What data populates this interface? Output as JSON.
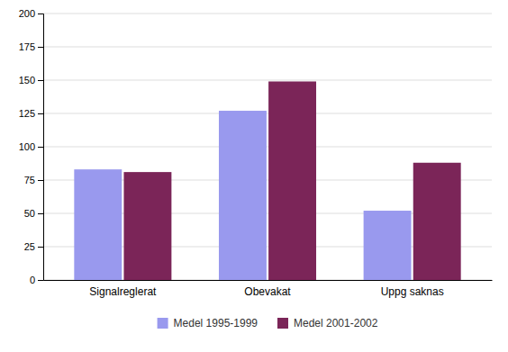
{
  "chart_data": {
    "type": "bar",
    "categories": [
      "Signalreglerat",
      "Obevakat",
      "Uppg saknas"
    ],
    "series": [
      {
        "name": "Medel 1995-1999",
        "color": "#9999EE",
        "values": [
          83,
          127,
          52
        ]
      },
      {
        "name": "Medel 2001-2002",
        "color": "#7B2558",
        "values": [
          81,
          149,
          88
        ]
      }
    ],
    "ylim": [
      0,
      200
    ],
    "yticks": [
      0,
      25,
      50,
      75,
      100,
      125,
      150,
      175,
      200
    ],
    "grid": true,
    "legend": "bottom"
  }
}
